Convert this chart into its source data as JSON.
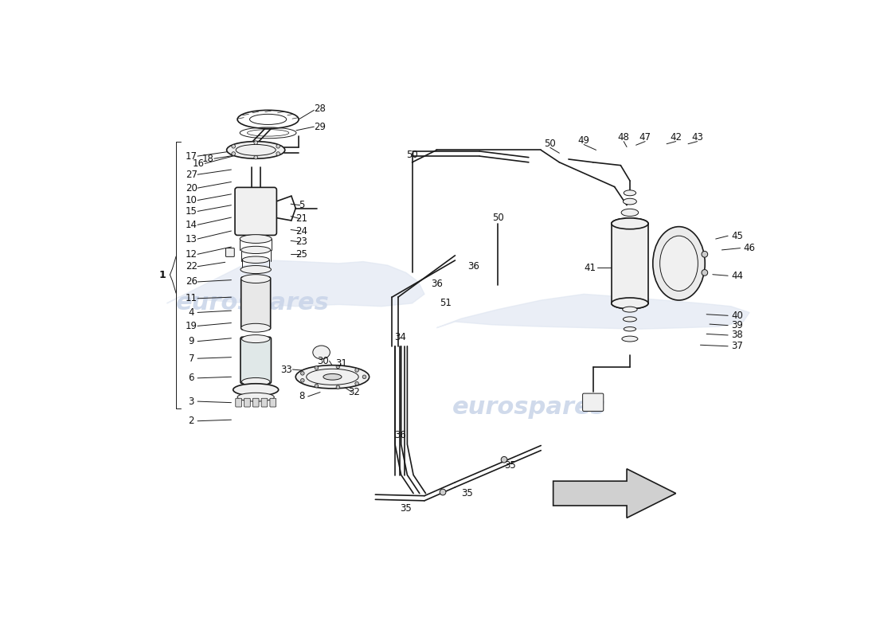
{
  "background_color": "#ffffff",
  "watermark_color": "#c8d4e8",
  "line_color": "#1a1a1a",
  "figsize": [
    11.0,
    8.0
  ],
  "dpi": 100,
  "car_color": "#dde4f0",
  "component_fill": "#f0f0f0",
  "component_edge": "#1a1a1a"
}
